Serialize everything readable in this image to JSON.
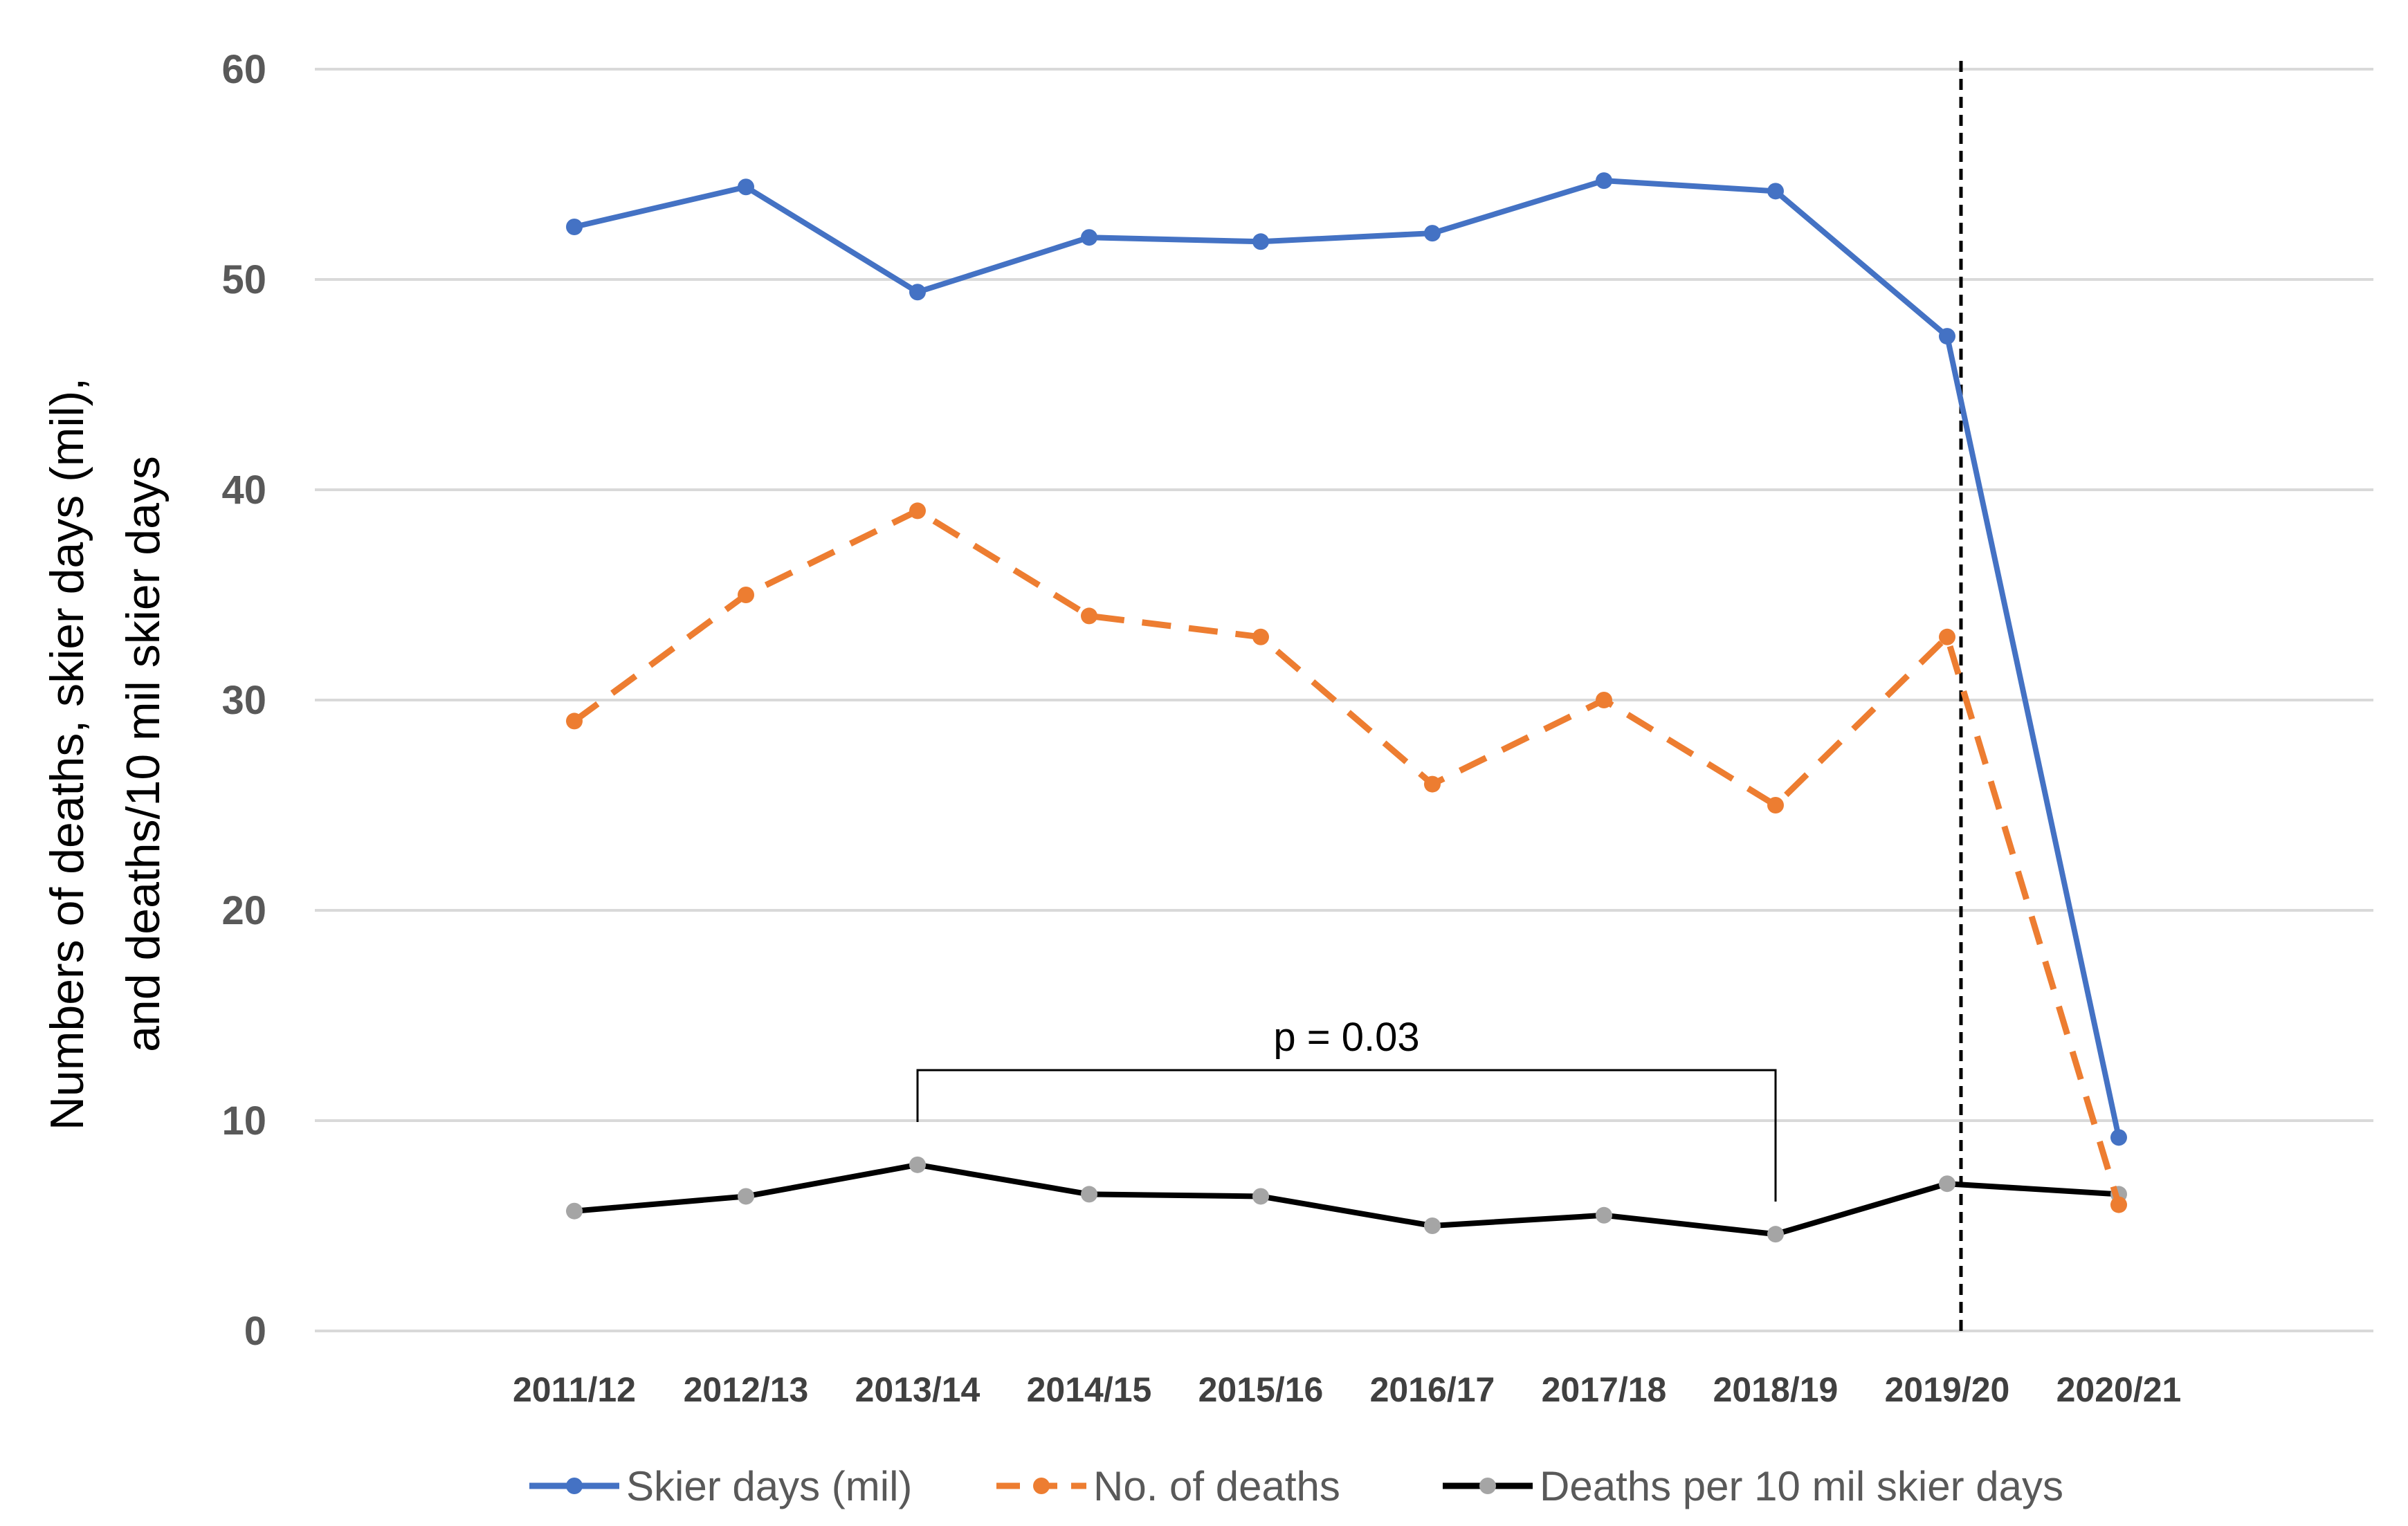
{
  "chart_data": {
    "type": "line",
    "categories": [
      "2011/12",
      "2012/13",
      "2013/14",
      "2014/15",
      "2015/16",
      "2016/17",
      "2017/18",
      "2018/19",
      "2019/20",
      "2020/21"
    ],
    "series": [
      {
        "name": "Skier days (mil)",
        "values": [
          52.5,
          54.4,
          49.4,
          52.0,
          51.8,
          52.2,
          54.7,
          54.2,
          47.3,
          9.2
        ],
        "color": "#4472C4",
        "dash": "solid"
      },
      {
        "name": "No. of deaths",
        "values": [
          29,
          35,
          39,
          34,
          33,
          26,
          30,
          25,
          33,
          6
        ],
        "color": "#ED7D31",
        "dash": "dashed"
      },
      {
        "name": "Deaths per 10 mil skier days",
        "values": [
          5.7,
          6.4,
          7.9,
          6.5,
          6.4,
          5.0,
          5.5,
          4.6,
          7.0,
          6.5
        ],
        "color": "#000000",
        "marker_color": "#A5A5A5",
        "dash": "solid"
      }
    ],
    "ylabel_line1": "Numbers of deaths, skier days (mil),",
    "ylabel_line2": "and deaths/10 mil skier days",
    "xlabel": "",
    "ylim": [
      0,
      60
    ],
    "yticks": [
      "0",
      "10",
      "20",
      "30",
      "40",
      "50",
      "60"
    ],
    "grid": true,
    "legend_position": "bottom",
    "vertical_line_at": "2019/20",
    "annotation": {
      "text": "p = 0.03",
      "from": "2013/14",
      "to": "2018/19",
      "y": 12.4
    }
  }
}
